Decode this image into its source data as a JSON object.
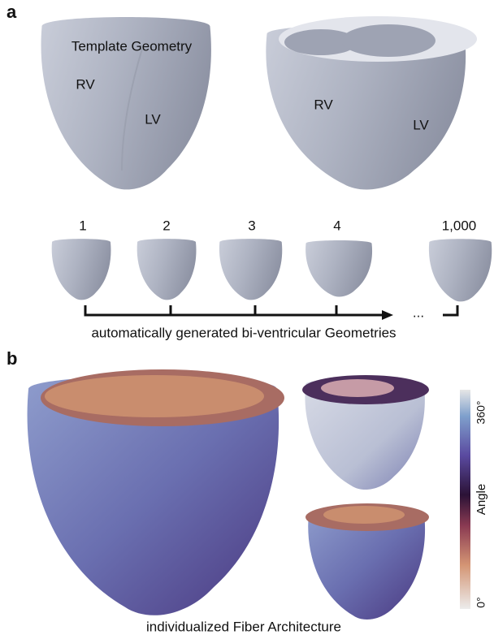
{
  "panel_a": {
    "label": "a",
    "template_title": "Template Geometry",
    "template_labels": [
      "RV",
      "LV"
    ],
    "cut_labels": [
      "RV",
      "LV"
    ],
    "geometry_ids": [
      "1",
      "2",
      "3",
      "4",
      "1,000"
    ],
    "ellipsis": "...",
    "caption": "automatically generated bi-ventricular Geometries"
  },
  "panel_b": {
    "label": "b",
    "colorbar_title": "Angle",
    "colorbar_max": "360°",
    "colorbar_min": "0°",
    "caption": "individualized Fiber Architecture"
  }
}
